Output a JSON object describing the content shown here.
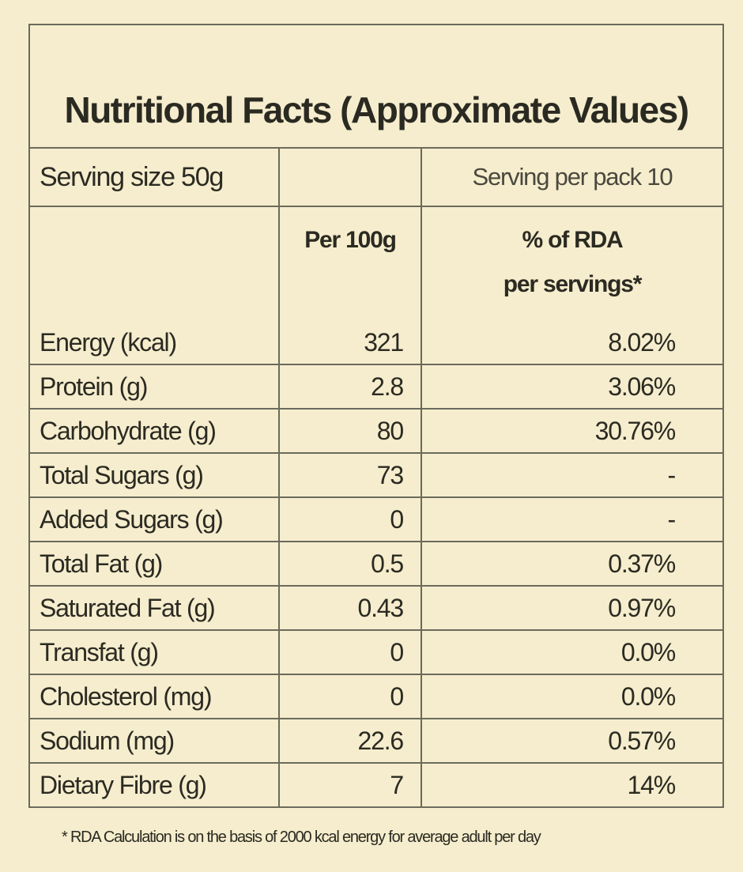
{
  "title": "Nutritional Facts (Approximate Values)",
  "serving_size": "Serving size 50g",
  "serving_per_pack": "Serving per pack 10",
  "columns": {
    "per100": "Per 100g",
    "rda_line1": "% of RDA",
    "rda_line2": "per servings*"
  },
  "rows": [
    {
      "name": "Energy (kcal)",
      "per100": "321",
      "rda": "8.02%"
    },
    {
      "name": "Protein (g)",
      "per100": "2.8",
      "rda": "3.06%"
    },
    {
      "name": "Carbohydrate (g)",
      "per100": "80",
      "rda": "30.76%"
    },
    {
      "name": "Total Sugars (g)",
      "per100": "73",
      "rda": "-"
    },
    {
      "name": "Added Sugars (g)",
      "per100": "0",
      "rda": "-"
    },
    {
      "name": "Total Fat (g)",
      "per100": "0.5",
      "rda": "0.37%"
    },
    {
      "name": "Saturated Fat (g)",
      "per100": "0.43",
      "rda": "0.97%"
    },
    {
      "name": "Transfat (g)",
      "per100": "0",
      "rda": "0.0%"
    },
    {
      "name": "Cholesterol (mg)",
      "per100": "0",
      "rda": "0.0%"
    },
    {
      "name": "Sodium (mg)",
      "per100": "22.6",
      "rda": "0.57%"
    },
    {
      "name": "Dietary Fibre (g)",
      "per100": "7",
      "rda": "14%"
    }
  ],
  "footnote": "* RDA Calculation is on the basis of 2000 kcal energy for average adult per day"
}
